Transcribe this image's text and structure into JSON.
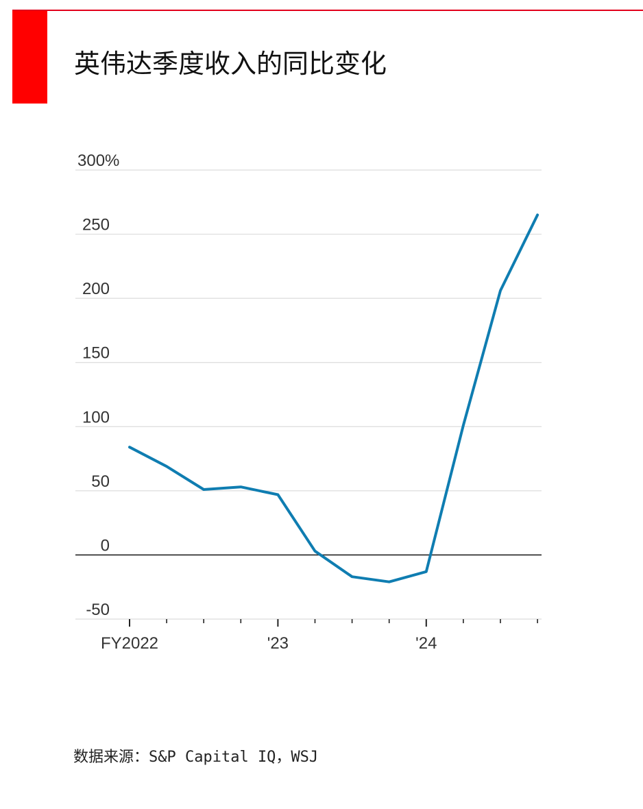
{
  "header": {
    "title": "英伟达季度收入的同比变化",
    "accent_color": "#ff0000"
  },
  "footer": {
    "source": "数据来源：S&P Capital IQ，WSJ"
  },
  "chart_data": {
    "type": "line",
    "title": "英伟达季度收入的同比变化",
    "xlabel": "",
    "ylabel": "",
    "ylim": [
      -50,
      300
    ],
    "yticks": [
      -50,
      0,
      50,
      100,
      150,
      200,
      250,
      300
    ],
    "ytick_labels": [
      "-50",
      "0",
      "50",
      "100",
      "150",
      "200",
      "250",
      "300%"
    ],
    "x_major_labels": [
      {
        "index": 0,
        "label": "FY2022"
      },
      {
        "index": 4,
        "label": "'23"
      },
      {
        "index": 8,
        "label": "'24"
      }
    ],
    "num_quarters": 12,
    "grid": true,
    "series": [
      {
        "color": "#0f7db1",
        "values": [
          84,
          69,
          51,
          53,
          47,
          3,
          -17,
          -21,
          -13,
          101,
          206,
          265
        ]
      }
    ]
  }
}
